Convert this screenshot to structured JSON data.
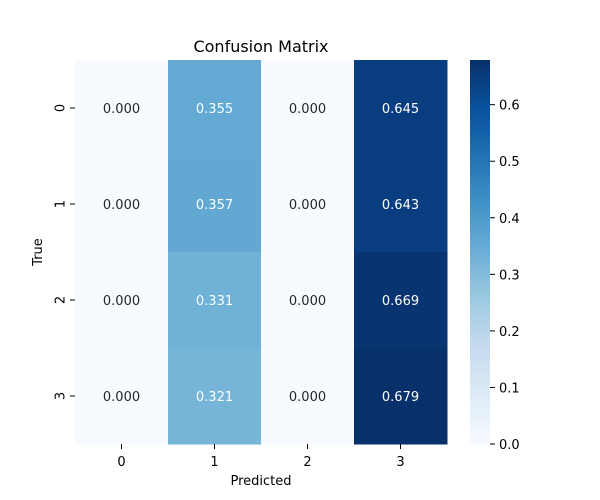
{
  "chart_data": {
    "type": "heatmap",
    "title": "Confusion Matrix",
    "xlabel": "Predicted",
    "ylabel": "True",
    "x_categories": [
      "0",
      "1",
      "2",
      "3"
    ],
    "y_categories": [
      "0",
      "1",
      "2",
      "3"
    ],
    "values": [
      [
        0.0,
        0.355,
        0.0,
        0.645
      ],
      [
        0.0,
        0.357,
        0.0,
        0.643
      ],
      [
        0.0,
        0.331,
        0.0,
        0.669
      ],
      [
        0.0,
        0.321,
        0.0,
        0.679
      ]
    ],
    "cell_labels": [
      [
        "0.000",
        "0.355",
        "0.000",
        "0.645"
      ],
      [
        "0.000",
        "0.357",
        "0.000",
        "0.643"
      ],
      [
        "0.000",
        "0.331",
        "0.000",
        "0.669"
      ],
      [
        "0.000",
        "0.321",
        "0.000",
        "0.679"
      ]
    ],
    "colormap": "Blues",
    "colorbar": {
      "range": [
        0,
        0.679
      ],
      "ticks": [
        0.0,
        0.1,
        0.2,
        0.3,
        0.4,
        0.5,
        0.6
      ],
      "tick_labels": [
        "0.0",
        "0.1",
        "0.2",
        "0.3",
        "0.4",
        "0.5",
        "0.6"
      ]
    },
    "colors": {
      "low": "#f7fbff",
      "high": "#08306b",
      "text_dark": "#262626",
      "text_light": "#ffffff"
    }
  }
}
